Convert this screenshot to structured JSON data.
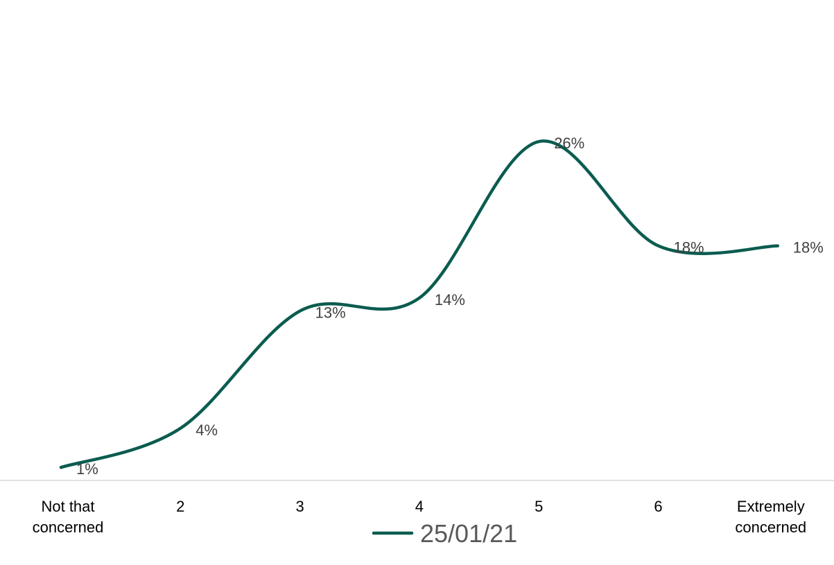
{
  "chart_data": {
    "type": "line",
    "smooth": true,
    "categories": [
      "Not that concerned",
      "2",
      "3",
      "4",
      "5",
      "6",
      "Extremely concerned"
    ],
    "series": [
      {
        "name": "25/01/21",
        "values": [
          1,
          4,
          13,
          14,
          26,
          18,
          18
        ],
        "data_labels": [
          "1%",
          "4%",
          "13%",
          "14%",
          "26%",
          "18%",
          "18%"
        ],
        "color": "#0B5C4F"
      }
    ],
    "value_unit": "%",
    "ylim": [
      0,
      28
    ],
    "grid": false,
    "show_value_axis": false,
    "legend": {
      "position": "bottom"
    },
    "colors": {
      "line": "#0B5C4F",
      "axis": "#D9D9D9",
      "tick_text": "#000000",
      "label_text": "#404040",
      "legend_text": "#595959"
    }
  }
}
